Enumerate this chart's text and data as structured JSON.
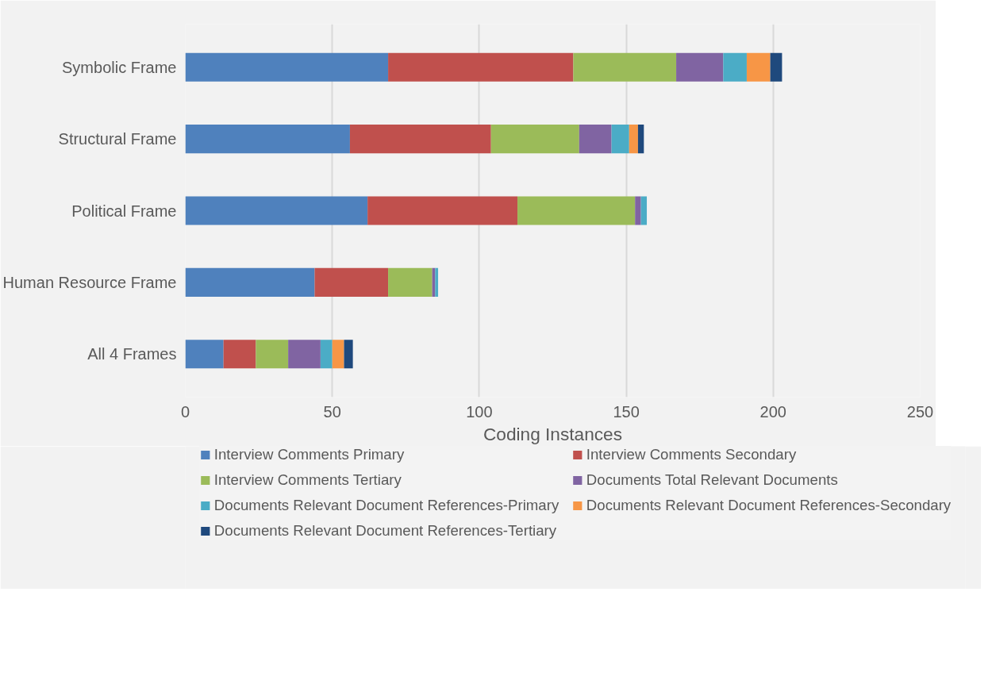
{
  "chart_data": {
    "type": "bar",
    "orientation": "horizontal",
    "stacked": true,
    "xlabel": "Coding Instances",
    "categories": [
      "Symbolic Frame",
      "Structural Frame",
      "Political Frame",
      "Human Resource Frame",
      "All 4 Frames"
    ],
    "series": [
      {
        "name": "Interview Comments Primary",
        "color": "#4f81bd",
        "values": [
          69,
          56,
          62,
          44,
          13
        ]
      },
      {
        "name": "Interview Comments Secondary",
        "color": "#c0504d",
        "values": [
          63,
          48,
          51,
          25,
          11
        ]
      },
      {
        "name": "Interview Comments Tertiary",
        "color": "#9bbb59",
        "values": [
          35,
          30,
          40,
          15,
          11
        ]
      },
      {
        "name": "Documents Total Relevant Documents",
        "color": "#8064a2",
        "values": [
          16,
          11,
          2,
          1,
          11
        ]
      },
      {
        "name": "Documents Relevant Document References-Primary",
        "color": "#4bacc6",
        "values": [
          8,
          6,
          2,
          1,
          4
        ]
      },
      {
        "name": "Documents Relevant Document References-Secondary",
        "color": "#f79646",
        "values": [
          8,
          3,
          0,
          0,
          4
        ]
      },
      {
        "name": "Documents Relevant Document References-Tertiary",
        "color": "#1f497d",
        "values": [
          4,
          2,
          0,
          0,
          3
        ]
      }
    ],
    "xlim": [
      0,
      250
    ],
    "xticks": [
      0,
      50,
      100,
      150,
      200,
      250
    ],
    "grid": "x",
    "legend": "bottom"
  }
}
